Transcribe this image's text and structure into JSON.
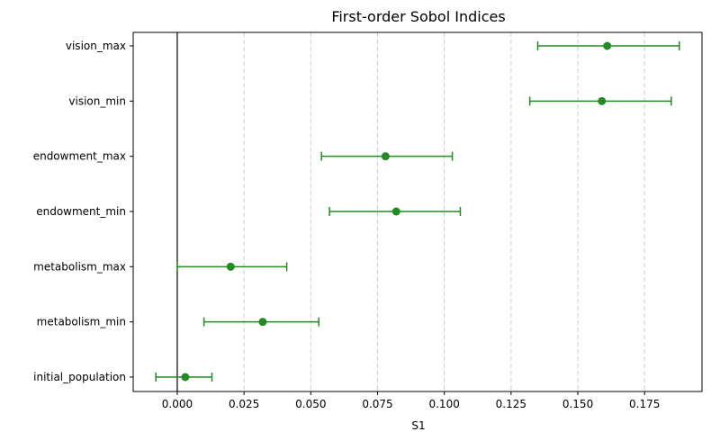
{
  "chart_data": {
    "type": "errorbar",
    "title": "First-order Sobol Indices",
    "xlabel": "S1",
    "ylabel": "",
    "xlim": [
      -0.0165,
      0.1965
    ],
    "xticks": [
      0.0,
      0.025,
      0.05,
      0.075,
      0.1,
      0.125,
      0.15,
      0.175
    ],
    "xtick_labels": [
      "0.000",
      "0.025",
      "0.050",
      "0.075",
      "0.100",
      "0.125",
      "0.150",
      "0.175"
    ],
    "grid": "x-dashed",
    "reference_line_x": 0.0,
    "color": "#228b22",
    "points": [
      {
        "label": "vision_max",
        "value": 0.161,
        "ci_low": 0.135,
        "ci_high": 0.188
      },
      {
        "label": "vision_min",
        "value": 0.159,
        "ci_low": 0.132,
        "ci_high": 0.185
      },
      {
        "label": "endowment_max",
        "value": 0.078,
        "ci_low": 0.054,
        "ci_high": 0.103
      },
      {
        "label": "endowment_min",
        "value": 0.082,
        "ci_low": 0.057,
        "ci_high": 0.106
      },
      {
        "label": "metabolism_max",
        "value": 0.02,
        "ci_low": 0.0,
        "ci_high": 0.041
      },
      {
        "label": "metabolism_min",
        "value": 0.032,
        "ci_low": 0.01,
        "ci_high": 0.053
      },
      {
        "label": "initial_population",
        "value": 0.003,
        "ci_low": -0.008,
        "ci_high": 0.013
      }
    ]
  }
}
